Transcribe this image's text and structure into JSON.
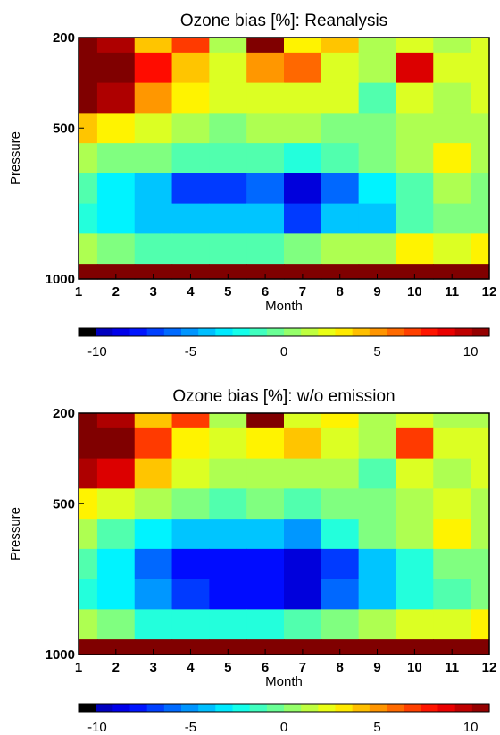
{
  "chart_data": [
    {
      "type": "heatmap",
      "title": "Ozone bias [%]: Reanalysis",
      "xlabel": "Month",
      "ylabel": "Pressure",
      "x": [
        1,
        2,
        3,
        4,
        5,
        6,
        7,
        8,
        9,
        10,
        11,
        12
      ],
      "x_ticks": [
        "1",
        "2",
        "3",
        "4",
        "5",
        "6",
        "7",
        "8",
        "9",
        "10",
        "11",
        "12"
      ],
      "y": [
        200,
        300,
        400,
        500,
        600,
        700,
        800,
        900,
        1000
      ],
      "y_ticks": [
        "200",
        "500",
        "1000"
      ],
      "ylim": [
        200,
        1000
      ],
      "y_reversed": true,
      "colorbar": {
        "range": [
          -11,
          11
        ],
        "ticks": [
          "-10",
          "-5",
          "0",
          "5",
          "10"
        ]
      },
      "values": [
        [
          12,
          10,
          4,
          7,
          1,
          12,
          3,
          4,
          1,
          2,
          1,
          2
        ],
        [
          12,
          11,
          8,
          4,
          2,
          5,
          6,
          2,
          1,
          9,
          2,
          2
        ],
        [
          11,
          10,
          5,
          3,
          2,
          2,
          2,
          2,
          -1,
          2,
          1,
          2
        ],
        [
          4,
          3,
          2,
          1,
          0,
          1,
          1,
          0,
          0,
          1,
          1,
          1
        ],
        [
          1,
          0,
          0,
          -1,
          -1,
          -1,
          -2,
          -1,
          0,
          1,
          3,
          1
        ],
        [
          -1,
          -3,
          -4,
          -7,
          -7,
          -6,
          -9,
          -6,
          -3,
          -1,
          1,
          0
        ],
        [
          -2,
          -3,
          -4,
          -4,
          -4,
          -4,
          -7,
          -4,
          -4,
          -1,
          0,
          0
        ],
        [
          1,
          0,
          -1,
          -1,
          -1,
          -1,
          0,
          1,
          1,
          3,
          2,
          3
        ],
        [
          12,
          12,
          12,
          12,
          11,
          11,
          11,
          12,
          12,
          12,
          12,
          12
        ]
      ]
    },
    {
      "type": "heatmap",
      "title": "Ozone bias [%]: w/o emission",
      "xlabel": "Month",
      "ylabel": "Pressure",
      "x": [
        1,
        2,
        3,
        4,
        5,
        6,
        7,
        8,
        9,
        10,
        11,
        12
      ],
      "x_ticks": [
        "1",
        "2",
        "3",
        "4",
        "5",
        "6",
        "7",
        "8",
        "9",
        "10",
        "11",
        "12"
      ],
      "y": [
        200,
        300,
        400,
        500,
        600,
        700,
        800,
        900,
        1000
      ],
      "y_ticks": [
        "200",
        "500",
        "1000"
      ],
      "ylim": [
        200,
        1000
      ],
      "y_reversed": true,
      "colorbar": {
        "range": [
          -11,
          11
        ],
        "ticks": [
          "-10",
          "-5",
          "0",
          "5",
          "10"
        ]
      },
      "values": [
        [
          12,
          10,
          4,
          7,
          1,
          12,
          2,
          3,
          1,
          2,
          1,
          1
        ],
        [
          12,
          11,
          7,
          3,
          2,
          3,
          4,
          2,
          1,
          7,
          2,
          2
        ],
        [
          10,
          9,
          4,
          2,
          1,
          1,
          1,
          1,
          -1,
          2,
          1,
          2
        ],
        [
          3,
          2,
          1,
          0,
          -1,
          0,
          -1,
          0,
          0,
          1,
          2,
          1
        ],
        [
          1,
          -1,
          -3,
          -4,
          -4,
          -4,
          -5,
          -2,
          0,
          1,
          3,
          1
        ],
        [
          -1,
          -3,
          -6,
          -8,
          -8,
          -8,
          -9,
          -7,
          -4,
          -2,
          0,
          0
        ],
        [
          -2,
          -3,
          -5,
          -7,
          -8,
          -8,
          -9,
          -6,
          -4,
          -2,
          -1,
          0
        ],
        [
          1,
          0,
          -2,
          -2,
          -2,
          -2,
          -1,
          0,
          1,
          2,
          2,
          3
        ],
        [
          12,
          12,
          11,
          11,
          11,
          11,
          11,
          11,
          12,
          12,
          12,
          12
        ]
      ]
    }
  ]
}
